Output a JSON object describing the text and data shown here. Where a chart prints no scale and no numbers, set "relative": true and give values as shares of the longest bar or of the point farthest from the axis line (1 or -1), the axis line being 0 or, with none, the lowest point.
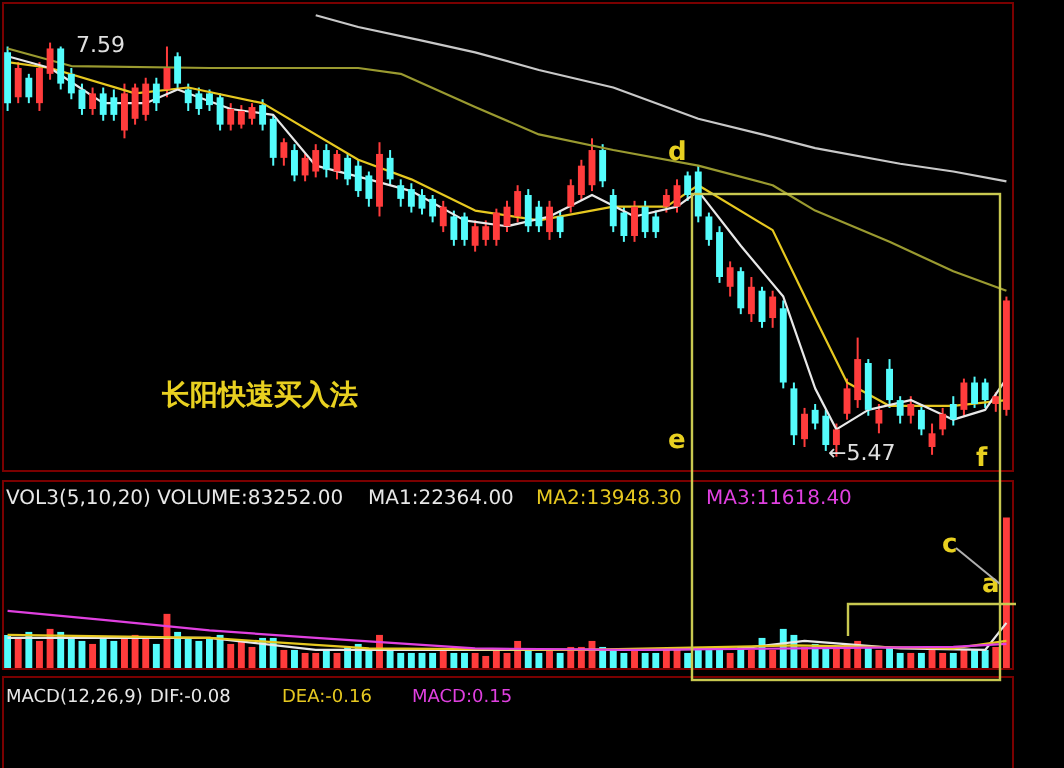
{
  "chart_data": [
    {
      "type": "candlestick",
      "marker": "none",
      "line_style": "solid",
      "categories": [
        null,
        null,
        null,
        null,
        null,
        null,
        null,
        null,
        null,
        null,
        null,
        null,
        null,
        null,
        null,
        null,
        null,
        null,
        null,
        null,
        null,
        null,
        null,
        null,
        null,
        null,
        null,
        null,
        null,
        null,
        null,
        null,
        null,
        null,
        null,
        null,
        null,
        null,
        null,
        null,
        null,
        null,
        null,
        null,
        null,
        null,
        null,
        null,
        null,
        null,
        null,
        null,
        null,
        null,
        null,
        null,
        null,
        null,
        null,
        null,
        null,
        null,
        null,
        null,
        null,
        null,
        null,
        null,
        null,
        null,
        null,
        null,
        null,
        null,
        null,
        null,
        null,
        null,
        null,
        null,
        null,
        null,
        null,
        null,
        null,
        null,
        null,
        null,
        null,
        null,
        null,
        null,
        null,
        null,
        null
      ],
      "ohlc": [
        [
          7.54,
          7.57,
          7.24,
          7.28
        ],
        [
          7.31,
          7.49,
          7.28,
          7.46
        ],
        [
          7.41,
          7.43,
          7.28,
          7.31
        ],
        [
          7.28,
          7.49,
          7.24,
          7.46
        ],
        [
          7.43,
          7.59,
          7.4,
          7.56
        ],
        [
          7.56,
          7.57,
          7.35,
          7.38
        ],
        [
          7.43,
          7.46,
          7.3,
          7.33
        ],
        [
          7.35,
          7.38,
          7.22,
          7.25
        ],
        [
          7.25,
          7.36,
          7.22,
          7.33
        ],
        [
          7.33,
          7.36,
          7.19,
          7.22
        ],
        [
          7.31,
          7.35,
          7.19,
          7.22
        ],
        [
          7.14,
          7.38,
          7.1,
          7.33
        ],
        [
          7.2,
          7.38,
          7.17,
          7.36
        ],
        [
          7.22,
          7.41,
          7.19,
          7.38
        ],
        [
          7.38,
          7.41,
          7.24,
          7.28
        ],
        [
          7.35,
          7.57,
          7.31,
          7.46
        ],
        [
          7.52,
          7.54,
          7.35,
          7.38
        ],
        [
          7.35,
          7.38,
          7.24,
          7.28
        ],
        [
          7.33,
          7.36,
          7.22,
          7.25
        ],
        [
          7.33,
          7.35,
          7.24,
          7.27
        ],
        [
          7.31,
          7.33,
          7.14,
          7.17
        ],
        [
          7.17,
          7.28,
          7.14,
          7.25
        ],
        [
          7.17,
          7.27,
          7.15,
          7.24
        ],
        [
          7.2,
          7.28,
          7.17,
          7.26
        ],
        [
          7.27,
          7.3,
          7.14,
          7.17
        ],
        [
          7.2,
          7.22,
          6.96,
          7.0
        ],
        [
          7.0,
          7.1,
          6.96,
          7.08
        ],
        [
          7.04,
          7.07,
          6.88,
          6.91
        ],
        [
          6.91,
          7.02,
          6.88,
          7.0
        ],
        [
          6.93,
          7.07,
          6.9,
          7.04
        ],
        [
          7.04,
          7.07,
          6.9,
          6.94
        ],
        [
          6.93,
          7.04,
          6.89,
          7.02
        ],
        [
          7.0,
          7.02,
          6.86,
          6.89
        ],
        [
          6.96,
          6.99,
          6.8,
          6.83
        ],
        [
          6.91,
          6.93,
          6.75,
          6.79
        ],
        [
          6.75,
          7.08,
          6.7,
          7.02
        ],
        [
          7.0,
          7.04,
          6.86,
          6.89
        ],
        [
          6.86,
          6.89,
          6.75,
          6.79
        ],
        [
          6.84,
          6.87,
          6.72,
          6.75
        ],
        [
          6.81,
          6.84,
          6.71,
          6.74
        ],
        [
          6.79,
          6.81,
          6.67,
          6.7
        ],
        [
          6.65,
          6.78,
          6.62,
          6.75
        ],
        [
          6.7,
          6.73,
          6.55,
          6.58
        ],
        [
          6.7,
          6.72,
          6.55,
          6.58
        ],
        [
          6.55,
          6.68,
          6.52,
          6.65
        ],
        [
          6.58,
          6.68,
          6.55,
          6.65
        ],
        [
          6.58,
          6.74,
          6.55,
          6.72
        ],
        [
          6.65,
          6.78,
          6.62,
          6.75
        ],
        [
          6.7,
          6.86,
          6.67,
          6.83
        ],
        [
          6.81,
          6.84,
          6.62,
          6.65
        ],
        [
          6.75,
          6.78,
          6.62,
          6.65
        ],
        [
          6.62,
          6.78,
          6.58,
          6.75
        ],
        [
          6.7,
          6.73,
          6.59,
          6.62
        ],
        [
          6.75,
          6.89,
          6.72,
          6.86
        ],
        [
          6.81,
          6.99,
          6.78,
          6.96
        ],
        [
          6.86,
          7.1,
          6.83,
          7.04
        ],
        [
          7.04,
          7.07,
          6.85,
          6.88
        ],
        [
          6.81,
          6.84,
          6.62,
          6.65
        ],
        [
          6.72,
          6.75,
          6.57,
          6.6
        ],
        [
          6.6,
          6.78,
          6.57,
          6.75
        ],
        [
          6.75,
          6.78,
          6.59,
          6.62
        ],
        [
          6.7,
          6.73,
          6.59,
          6.62
        ],
        [
          6.75,
          6.84,
          6.72,
          6.81
        ],
        [
          6.75,
          6.89,
          6.72,
          6.86
        ],
        [
          6.91,
          6.93,
          6.78,
          6.81
        ],
        [
          6.93,
          6.96,
          6.67,
          6.7
        ],
        [
          6.7,
          6.72,
          6.55,
          6.58
        ],
        [
          6.62,
          6.65,
          6.36,
          6.39
        ],
        [
          6.34,
          6.47,
          6.29,
          6.44
        ],
        [
          6.42,
          6.44,
          6.2,
          6.23
        ],
        [
          6.2,
          6.39,
          6.16,
          6.34
        ],
        [
          6.32,
          6.34,
          6.13,
          6.16
        ],
        [
          6.18,
          6.32,
          6.13,
          6.29
        ],
        [
          6.23,
          6.27,
          5.82,
          5.85
        ],
        [
          5.82,
          5.85,
          5.53,
          5.58
        ],
        [
          5.56,
          5.72,
          5.52,
          5.69
        ],
        [
          5.71,
          5.74,
          5.61,
          5.64
        ],
        [
          5.68,
          5.71,
          5.5,
          5.53
        ],
        [
          5.53,
          5.64,
          5.47,
          5.61
        ],
        [
          5.69,
          5.87,
          5.66,
          5.82
        ],
        [
          5.76,
          6.08,
          5.72,
          5.97
        ],
        [
          5.95,
          5.97,
          5.68,
          5.71
        ],
        [
          5.64,
          5.74,
          5.59,
          5.71
        ],
        [
          5.92,
          5.97,
          5.72,
          5.76
        ],
        [
          5.76,
          5.78,
          5.64,
          5.68
        ],
        [
          5.68,
          5.78,
          5.64,
          5.74
        ],
        [
          5.71,
          5.74,
          5.58,
          5.61
        ],
        [
          5.52,
          5.64,
          5.48,
          5.59
        ],
        [
          5.61,
          5.72,
          5.58,
          5.69
        ],
        [
          5.74,
          5.78,
          5.63,
          5.66
        ],
        [
          5.71,
          5.87,
          5.68,
          5.85
        ],
        [
          5.85,
          5.88,
          5.72,
          5.74
        ],
        [
          5.85,
          5.87,
          5.72,
          5.76
        ],
        [
          5.74,
          5.8,
          5.7,
          5.78
        ],
        [
          5.71,
          6.29,
          5.68,
          6.27
        ]
      ],
      "colors": [
        "#54fcfc",
        "#ff3c3c",
        "#54fcfc",
        "#ff3c3c",
        "#ff3c3c",
        "#54fcfc",
        "#54fcfc",
        "#54fcfc",
        "#ff3c3c",
        "#54fcfc",
        "#54fcfc",
        "#ff3c3c",
        "#ff3c3c",
        "#ff3c3c",
        "#54fcfc",
        "#ff3c3c",
        "#54fcfc",
        "#54fcfc",
        "#54fcfc",
        "#54fcfc",
        "#54fcfc",
        "#ff3c3c",
        "#ff3c3c",
        "#ff3c3c",
        "#54fcfc",
        "#54fcfc",
        "#ff3c3c",
        "#54fcfc",
        "#ff3c3c",
        "#ff3c3c",
        "#54fcfc",
        "#ff3c3c",
        "#54fcfc",
        "#54fcfc",
        "#54fcfc",
        "#ff3c3c",
        "#54fcfc",
        "#54fcfc",
        "#54fcfc",
        "#54fcfc",
        "#54fcfc",
        "#ff3c3c",
        "#54fcfc",
        "#54fcfc",
        "#ff3c3c",
        "#ff3c3c",
        "#ff3c3c",
        "#ff3c3c",
        "#ff3c3c",
        "#54fcfc",
        "#54fcfc",
        "#ff3c3c",
        "#54fcfc",
        "#ff3c3c",
        "#ff3c3c",
        "#ff3c3c",
        "#54fcfc",
        "#54fcfc",
        "#54fcfc",
        "#ff3c3c",
        "#54fcfc",
        "#54fcfc",
        "#ff3c3c",
        "#ff3c3c",
        "#54fcfc",
        "#54fcfc",
        "#54fcfc",
        "#54fcfc",
        "#ff3c3c",
        "#54fcfc",
        "#ff3c3c",
        "#54fcfc",
        "#ff3c3c",
        "#54fcfc",
        "#54fcfc",
        "#ff3c3c",
        "#54fcfc",
        "#54fcfc",
        "#ff3c3c",
        "#ff3c3c",
        "#ff3c3c",
        "#54fcfc",
        "#ff3c3c",
        "#54fcfc",
        "#54fcfc",
        "#ff3c3c",
        "#54fcfc",
        "#ff3c3c",
        "#ff3c3c",
        "#54fcfc",
        "#ff3c3c",
        "#54fcfc",
        "#54fcfc",
        "#ff3c3c",
        "#ff3c3c"
      ],
      "series": [
        {
          "type": "line",
          "color": "#c8c8c8",
          "values": [
            null,
            null,
            null,
            null,
            null,
            null,
            null,
            null,
            null,
            null,
            null,
            null,
            null,
            null,
            null,
            null,
            null,
            null,
            null,
            null,
            null,
            null,
            null,
            null,
            null,
            null,
            null,
            null,
            null,
            7.73,
            null,
            null,
            null,
            7.67,
            null,
            null,
            null,
            null,
            null,
            7.6,
            null,
            null,
            null,
            null,
            7.54,
            null,
            null,
            null,
            null,
            null,
            7.45,
            null,
            null,
            null,
            null,
            null,
            null,
            7.36,
            null,
            null,
            null,
            null,
            null,
            null,
            null,
            7.2,
            null,
            null,
            null,
            null,
            null,
            7.12,
            null,
            null,
            null,
            null,
            7.05,
            null,
            null,
            null,
            null,
            null,
            null,
            null,
            6.97,
            null,
            null,
            null,
            null,
            6.93,
            null,
            null,
            null,
            null,
            6.88
          ]
        },
        {
          "type": "line",
          "color": "#9a9a30",
          "values": [
            7.56,
            null,
            null,
            null,
            null,
            null,
            7.47,
            null,
            null,
            null,
            null,
            null,
            null,
            null,
            null,
            null,
            null,
            null,
            null,
            7.46,
            null,
            null,
            null,
            null,
            null,
            null,
            null,
            null,
            null,
            null,
            null,
            null,
            null,
            7.46,
            null,
            null,
            null,
            7.43,
            null,
            null,
            null,
            null,
            null,
            null,
            7.26,
            null,
            null,
            null,
            null,
            null,
            7.12,
            null,
            null,
            null,
            null,
            null,
            null,
            7.04,
            null,
            null,
            null,
            null,
            null,
            null,
            null,
            6.96,
            null,
            null,
            null,
            null,
            null,
            null,
            6.86,
            null,
            null,
            null,
            6.73,
            null,
            null,
            null,
            null,
            null,
            null,
            6.57,
            null,
            null,
            null,
            null,
            null,
            6.42,
            null,
            null,
            null,
            null,
            6.32
          ]
        },
        {
          "type": "line",
          "color": "#e6c820",
          "values": [
            7.49,
            null,
            null,
            null,
            7.46,
            null,
            null,
            null,
            null,
            null,
            null,
            null,
            7.33,
            null,
            null,
            null,
            null,
            7.36,
            null,
            null,
            null,
            null,
            null,
            null,
            7.28,
            null,
            null,
            null,
            null,
            null,
            null,
            null,
            null,
            6.99,
            null,
            null,
            null,
            null,
            6.89,
            null,
            null,
            null,
            null,
            null,
            6.73,
            null,
            null,
            null,
            null,
            null,
            6.68,
            null,
            null,
            null,
            null,
            null,
            null,
            6.75,
            null,
            null,
            null,
            null,
            6.75,
            null,
            null,
            6.86,
            null,
            null,
            null,
            null,
            null,
            null,
            6.63,
            null,
            null,
            null,
            6.18,
            null,
            null,
            5.85,
            null,
            null,
            null,
            5.73,
            null,
            null,
            null,
            null,
            null,
            5.73,
            null,
            null,
            null,
            null,
            5.76
          ]
        },
        {
          "type": "line",
          "color": "#e8e8e8",
          "values": [
            7.52,
            null,
            null,
            null,
            7.46,
            null,
            null,
            null,
            null,
            7.28,
            null,
            null,
            null,
            7.28,
            null,
            null,
            7.35,
            null,
            null,
            null,
            null,
            7.25,
            null,
            null,
            null,
            7.22,
            null,
            null,
            null,
            6.96,
            null,
            null,
            null,
            null,
            6.89,
            null,
            null,
            null,
            6.83,
            null,
            null,
            null,
            null,
            6.68,
            null,
            null,
            null,
            6.65,
            null,
            null,
            null,
            6.7,
            null,
            null,
            null,
            6.81,
            null,
            null,
            null,
            6.7,
            null,
            null,
            null,
            6.75,
            null,
            6.83,
            null,
            null,
            null,
            6.55,
            null,
            null,
            null,
            6.29,
            null,
            null,
            5.82,
            null,
            5.61,
            null,
            null,
            5.71,
            null,
            null,
            null,
            5.76,
            null,
            null,
            null,
            5.66,
            null,
            null,
            5.71,
            null,
            5.87
          ]
        }
      ],
      "annotations": [
        "长阳快速买入法",
        "7.59",
        "←5.47",
        "d",
        "e",
        "f"
      ]
    },
    {
      "type": "bar",
      "relative": true,
      "legend": "top",
      "title": "VOL3(5,10,20) VOLUME:83252.00",
      "categories": [
        null,
        null,
        null,
        null,
        null,
        null,
        null,
        null,
        null,
        null,
        null,
        null,
        null,
        null,
        null,
        null,
        null,
        null,
        null,
        null,
        null,
        null,
        null,
        null,
        null,
        null,
        null,
        null,
        null,
        null,
        null,
        null,
        null,
        null,
        null,
        null,
        null,
        null,
        null,
        null,
        null,
        null,
        null,
        null,
        null,
        null,
        null,
        null,
        null,
        null,
        null,
        null,
        null,
        null,
        null,
        null,
        null,
        null,
        null,
        null,
        null,
        null,
        null,
        null,
        null,
        null,
        null,
        null,
        null,
        null,
        null,
        null,
        null,
        null,
        null,
        null,
        null,
        null,
        null,
        null,
        null,
        null,
        null,
        null,
        null,
        null,
        null,
        null,
        null,
        null,
        null,
        null,
        null,
        null,
        null
      ],
      "values": [
        0.22,
        0.2,
        0.24,
        0.18,
        0.26,
        0.24,
        0.2,
        0.18,
        0.16,
        0.2,
        0.18,
        0.2,
        0.22,
        0.2,
        0.16,
        0.36,
        0.24,
        0.2,
        0.18,
        0.2,
        0.22,
        0.16,
        0.18,
        0.14,
        0.2,
        0.2,
        0.12,
        0.12,
        0.1,
        0.1,
        0.12,
        0.1,
        0.14,
        0.16,
        0.12,
        0.22,
        0.12,
        0.1,
        0.1,
        0.1,
        0.1,
        0.12,
        0.1,
        0.1,
        0.1,
        0.08,
        0.12,
        0.1,
        0.18,
        0.12,
        0.1,
        0.12,
        0.1,
        0.14,
        0.14,
        0.18,
        0.14,
        0.12,
        0.1,
        0.12,
        0.1,
        0.1,
        0.12,
        0.12,
        0.1,
        0.14,
        0.12,
        0.14,
        0.1,
        0.14,
        0.12,
        0.2,
        0.12,
        0.26,
        0.22,
        0.14,
        0.16,
        0.14,
        0.14,
        0.16,
        0.18,
        0.14,
        0.12,
        0.14,
        0.1,
        0.1,
        0.1,
        0.12,
        0.1,
        0.1,
        0.12,
        0.12,
        0.12,
        0.14,
        1
      ],
      "colors": [
        "#54fcfc",
        "#ff3c3c",
        "#54fcfc",
        "#ff3c3c",
        "#ff3c3c",
        "#54fcfc",
        "#54fcfc",
        "#54fcfc",
        "#ff3c3c",
        "#54fcfc",
        "#54fcfc",
        "#ff3c3c",
        "#ff3c3c",
        "#ff3c3c",
        "#54fcfc",
        "#ff3c3c",
        "#54fcfc",
        "#54fcfc",
        "#54fcfc",
        "#54fcfc",
        "#54fcfc",
        "#ff3c3c",
        "#ff3c3c",
        "#ff3c3c",
        "#54fcfc",
        "#54fcfc",
        "#ff3c3c",
        "#54fcfc",
        "#ff3c3c",
        "#ff3c3c",
        "#54fcfc",
        "#ff3c3c",
        "#54fcfc",
        "#54fcfc",
        "#54fcfc",
        "#ff3c3c",
        "#54fcfc",
        "#54fcfc",
        "#54fcfc",
        "#54fcfc",
        "#54fcfc",
        "#ff3c3c",
        "#54fcfc",
        "#54fcfc",
        "#ff3c3c",
        "#ff3c3c",
        "#ff3c3c",
        "#ff3c3c",
        "#ff3c3c",
        "#54fcfc",
        "#54fcfc",
        "#ff3c3c",
        "#54fcfc",
        "#ff3c3c",
        "#ff3c3c",
        "#ff3c3c",
        "#54fcfc",
        "#54fcfc",
        "#54fcfc",
        "#ff3c3c",
        "#54fcfc",
        "#54fcfc",
        "#ff3c3c",
        "#ff3c3c",
        "#54fcfc",
        "#54fcfc",
        "#54fcfc",
        "#54fcfc",
        "#ff3c3c",
        "#54fcfc",
        "#ff3c3c",
        "#54fcfc",
        "#ff3c3c",
        "#54fcfc",
        "#54fcfc",
        "#ff3c3c",
        "#54fcfc",
        "#54fcfc",
        "#ff3c3c",
        "#ff3c3c",
        "#ff3c3c",
        "#54fcfc",
        "#ff3c3c",
        "#54fcfc",
        "#54fcfc",
        "#ff3c3c",
        "#54fcfc",
        "#ff3c3c",
        "#ff3c3c",
        "#54fcfc",
        "#ff3c3c",
        "#54fcfc",
        "#54fcfc",
        "#ff3c3c",
        "#ff3c3c"
      ],
      "series": [
        {
          "name": "MA1:22364.00",
          "type": "line",
          "color": "#e8e8e8",
          "values": [
            0.2,
            null,
            null,
            null,
            null,
            null,
            null,
            null,
            null,
            null,
            null,
            null,
            null,
            null,
            null,
            null,
            null,
            null,
            null,
            0.2,
            null,
            null,
            null,
            null,
            null,
            null,
            null,
            null,
            null,
            0.12,
            null,
            null,
            null,
            null,
            null,
            null,
            null,
            null,
            null,
            0.12,
            null,
            null,
            null,
            null,
            null,
            null,
            null,
            null,
            null,
            0.12,
            null,
            null,
            null,
            null,
            null,
            null,
            null,
            null,
            null,
            0.12,
            null,
            null,
            null,
            null,
            null,
            null,
            null,
            null,
            null,
            0.13,
            null,
            null,
            null,
            null,
            null,
            0.18,
            null,
            null,
            null,
            null,
            null,
            null,
            null,
            null,
            0.13,
            null,
            null,
            null,
            null,
            null,
            null,
            null,
            0.12,
            null,
            0.3
          ]
        },
        {
          "name": "MA2:13948.30",
          "type": "line",
          "color": "#e6c820",
          "values": [
            0.22,
            null,
            null,
            null,
            null,
            null,
            null,
            null,
            null,
            null,
            null,
            null,
            null,
            null,
            null,
            null,
            null,
            null,
            null,
            0.2,
            null,
            null,
            null,
            null,
            null,
            null,
            null,
            null,
            null,
            null,
            null,
            null,
            null,
            null,
            0.13,
            null,
            null,
            null,
            null,
            null,
            null,
            null,
            null,
            null,
            null,
            null,
            null,
            null,
            null,
            null,
            null,
            null,
            null,
            null,
            0.12,
            null,
            null,
            null,
            null,
            null,
            null,
            null,
            null,
            null,
            null,
            null,
            null,
            null,
            null,
            null,
            null,
            null,
            null,
            null,
            0.15,
            null,
            null,
            null,
            null,
            null,
            null,
            null,
            null,
            null,
            null,
            null,
            null,
            null,
            null,
            0.13,
            null,
            null,
            null,
            null,
            0.18
          ]
        },
        {
          "name": "MA3:11618.40",
          "type": "line",
          "color": "#e040e0",
          "values": [
            0.38,
            null,
            null,
            null,
            null,
            null,
            null,
            null,
            null,
            0.32,
            null,
            null,
            null,
            null,
            null,
            null,
            null,
            null,
            null,
            0.25,
            null,
            null,
            null,
            null,
            null,
            null,
            null,
            null,
            null,
            0.2,
            null,
            null,
            null,
            null,
            null,
            null,
            null,
            null,
            null,
            null,
            null,
            null,
            null,
            null,
            0.13,
            null,
            null,
            null,
            null,
            null,
            null,
            null,
            null,
            null,
            null,
            null,
            null,
            null,
            null,
            0.12,
            null,
            null,
            null,
            null,
            null,
            null,
            null,
            null,
            null,
            null,
            null,
            null,
            null,
            null,
            0.13,
            null,
            null,
            null,
            null,
            null,
            null,
            null,
            null,
            null,
            null,
            null,
            null,
            null,
            null,
            0.14,
            null,
            null,
            null,
            null,
            0.16
          ]
        }
      ],
      "annotations": [
        "c",
        "a"
      ]
    },
    {
      "type": "other",
      "title": "MACD(12,26,9)",
      "annotations": [
        "DIF:-0.08",
        "DEA:-0.16",
        "MACD:0.15"
      ]
    }
  ]
}
